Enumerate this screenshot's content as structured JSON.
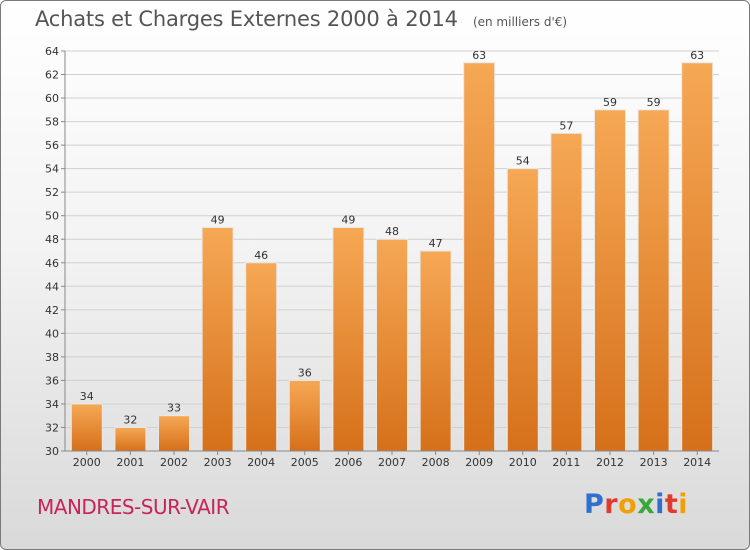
{
  "header": {
    "title": "Achats et Charges Externes 2000 à 2014",
    "unit": "(en milliers d'€)"
  },
  "footer": {
    "town": "MANDRES-SUR-VAIR",
    "logo_letters": [
      "P",
      "r",
      "o",
      "x",
      "i",
      "t",
      "i"
    ]
  },
  "colors": {
    "bar_top": "#f6a855",
    "bar_bottom": "#d6701a",
    "town": "#c8235a",
    "logo": [
      "#2f6fcf",
      "#e03a2a",
      "#f0a000",
      "#3aa73a",
      "#2f6fcf",
      "#e03a2a",
      "#f0a000"
    ]
  },
  "chart_data": {
    "type": "bar",
    "title": "Achats et Charges Externes 2000 à 2014",
    "subtitle": "(en milliers d'€)",
    "categories": [
      "2000",
      "2001",
      "2002",
      "2003",
      "2004",
      "2005",
      "2006",
      "2007",
      "2008",
      "2009",
      "2010",
      "2011",
      "2012",
      "2013",
      "2014"
    ],
    "values": [
      34,
      32,
      33,
      49,
      46,
      36,
      49,
      48,
      47,
      63,
      54,
      57,
      59,
      59,
      63
    ],
    "ylim": [
      30,
      64
    ],
    "yticks": [
      30,
      32,
      34,
      36,
      38,
      40,
      42,
      44,
      46,
      48,
      50,
      52,
      54,
      56,
      58,
      60,
      62,
      64
    ],
    "grid": true,
    "data_labels": true
  }
}
